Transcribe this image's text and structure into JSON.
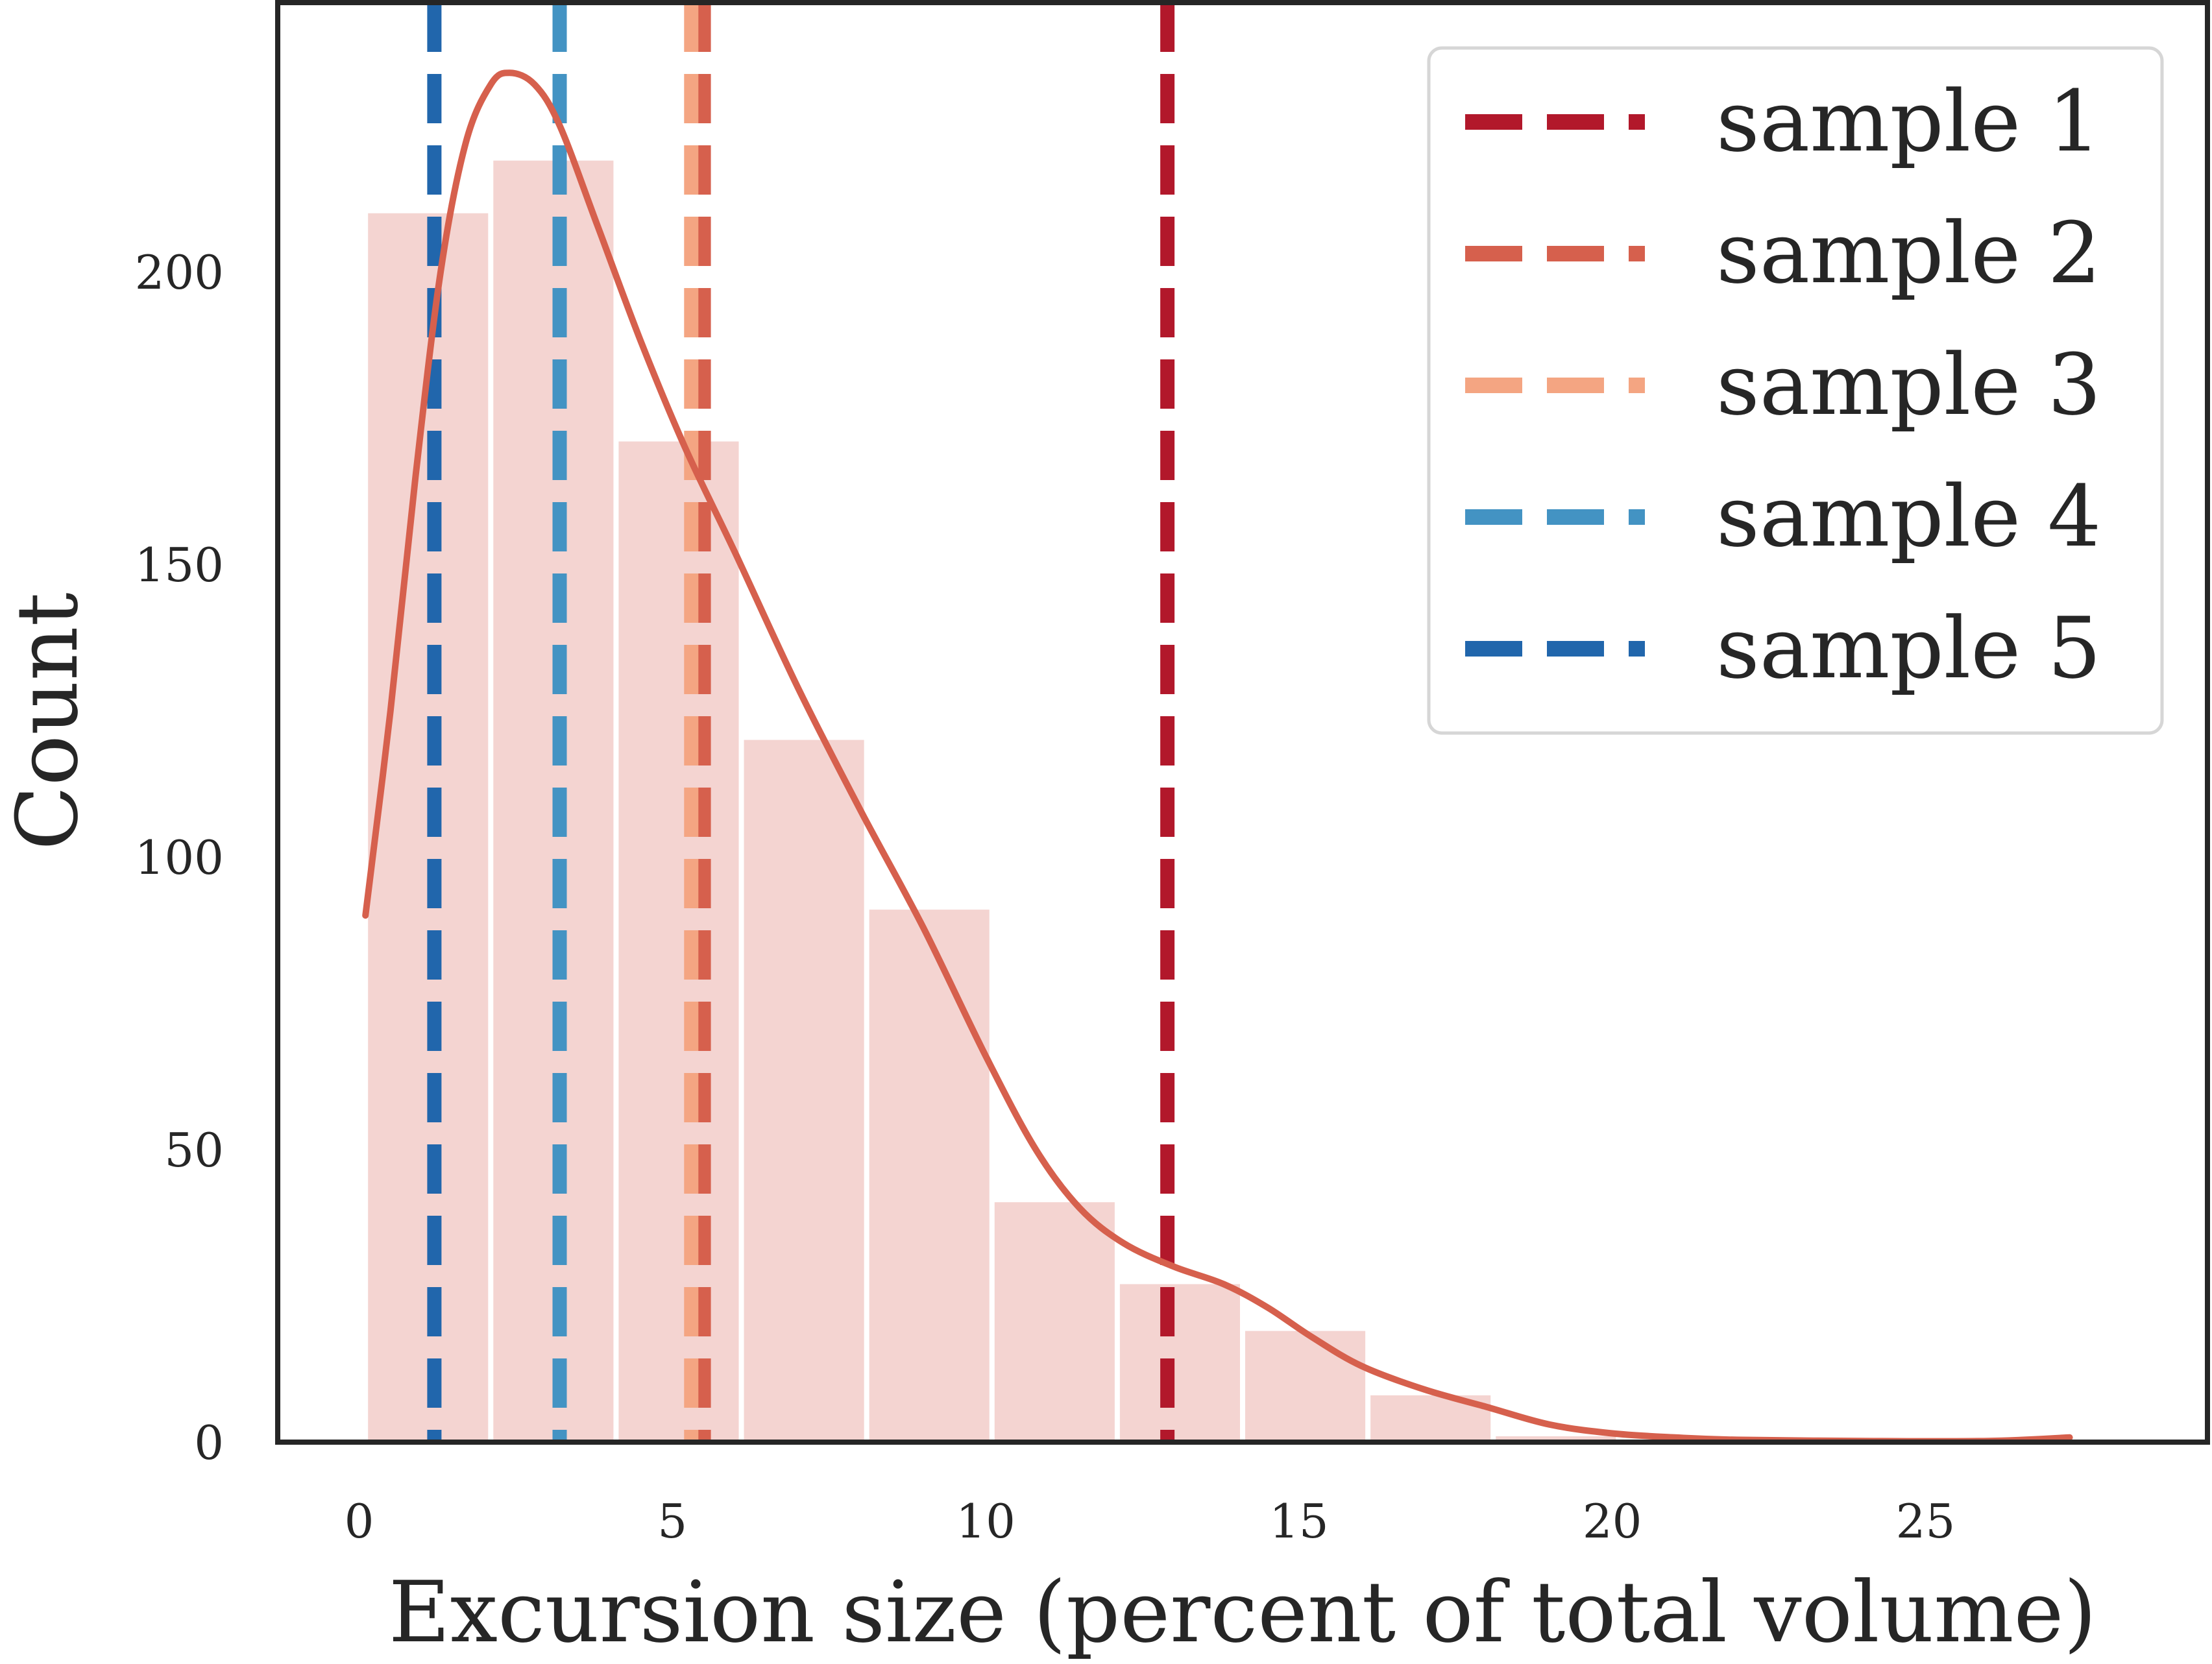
{
  "chart_data": {
    "type": "bar",
    "title": "",
    "xlabel": "Excursion size (percent of total volume)",
    "ylabel": "Count",
    "xlim": [
      -1.3,
      29.5
    ],
    "ylim": [
      0,
      246
    ],
    "xticks": [
      0,
      5,
      10,
      15,
      20,
      25
    ],
    "yticks": [
      0,
      50,
      100,
      150,
      200
    ],
    "grid": false,
    "legend_position": "top-right",
    "histogram": {
      "bin_edges": [
        0.1,
        2.1,
        4.1,
        6.1,
        8.1,
        10.1,
        12.1,
        14.1,
        16.1,
        18.1,
        20.1,
        22.1,
        24.1,
        26.1
      ],
      "counts": [
        210,
        219,
        171,
        120,
        91,
        41,
        27,
        19,
        8,
        1,
        0,
        0,
        0
      ],
      "color": "#f4d4d1"
    },
    "kde": {
      "color": "#d6604d",
      "points": [
        [
          0.1,
          90
        ],
        [
          0.5,
          125
        ],
        [
          0.9,
          165
        ],
        [
          1.3,
          200
        ],
        [
          1.7,
          222
        ],
        [
          2.1,
          232
        ],
        [
          2.4,
          234
        ],
        [
          2.8,
          232
        ],
        [
          3.2,
          225
        ],
        [
          3.8,
          208
        ],
        [
          4.5,
          188
        ],
        [
          5.2,
          170
        ],
        [
          6.0,
          152
        ],
        [
          7.0,
          129
        ],
        [
          8.0,
          108
        ],
        [
          9.0,
          88
        ],
        [
          10.0,
          66
        ],
        [
          10.8,
          50
        ],
        [
          11.5,
          40
        ],
        [
          12.2,
          34
        ],
        [
          13.0,
          30
        ],
        [
          13.8,
          27
        ],
        [
          14.5,
          23
        ],
        [
          15.2,
          18
        ],
        [
          16.0,
          13
        ],
        [
          17.0,
          9
        ],
        [
          18.0,
          6
        ],
        [
          19.0,
          3
        ],
        [
          20.0,
          1.5
        ],
        [
          21.0,
          0.8
        ],
        [
          22.0,
          0.4
        ],
        [
          24.0,
          0.2
        ],
        [
          26.0,
          0.2
        ],
        [
          27.3,
          0.8
        ]
      ]
    },
    "series": [
      {
        "name": "sample 1",
        "x": 12.9,
        "color": "#b2182b"
      },
      {
        "name": "sample 2",
        "x": 5.5,
        "color": "#d6604d"
      },
      {
        "name": "sample 3",
        "x": 5.3,
        "color": "#f4a582"
      },
      {
        "name": "sample 4",
        "x": 3.2,
        "color": "#4393c3"
      },
      {
        "name": "sample 5",
        "x": 1.2,
        "color": "#2166ac"
      }
    ]
  }
}
